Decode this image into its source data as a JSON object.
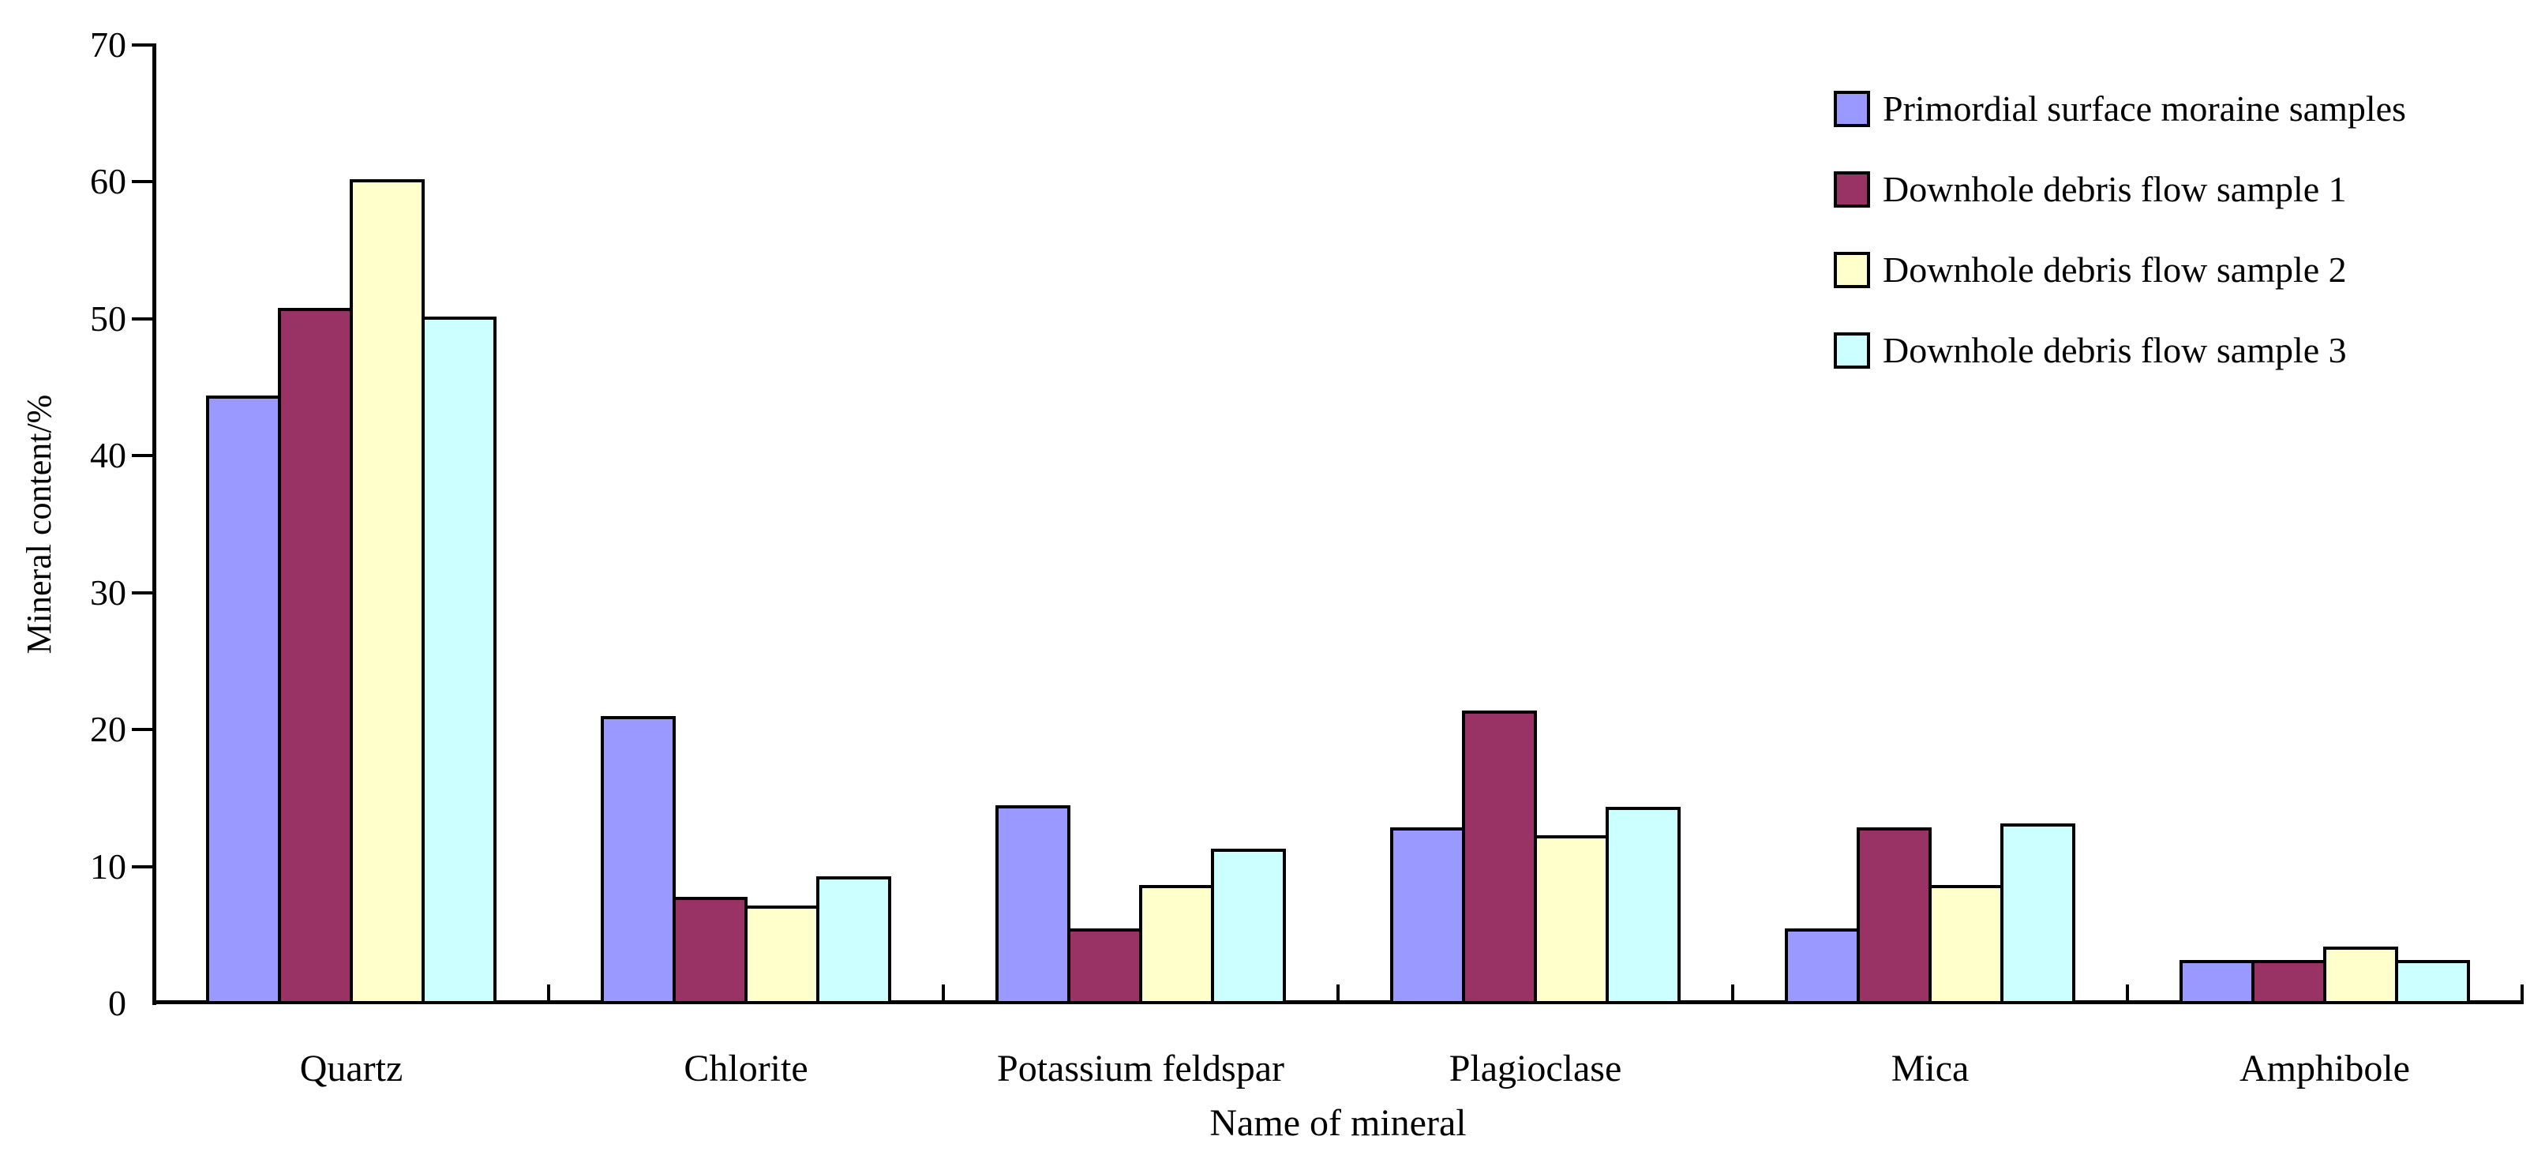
{
  "chart_data": {
    "type": "bar",
    "title": "",
    "xlabel": "Name of mineral",
    "ylabel": "Mineral content/%",
    "ylim": [
      0,
      70
    ],
    "yticks": [
      0,
      10,
      20,
      30,
      40,
      50,
      60,
      70
    ],
    "grid": false,
    "legend_position": "top-right",
    "background_color": "#FFFFFF",
    "bar_border_color": "#000000",
    "categories": [
      "Quartz",
      "Chlorite",
      "Potassium feldspar",
      "Plagioclase",
      "Mica",
      "Amphibole"
    ],
    "series": [
      {
        "name": "Primordial surface moraine samples",
        "color": "#9999FF",
        "values": [
          44.2,
          20.8,
          14.3,
          12.7,
          5.3,
          3.0
        ]
      },
      {
        "name": "Downhole debris flow sample 1",
        "color": "#993366",
        "values": [
          50.6,
          7.6,
          5.3,
          21.2,
          12.7,
          3.0
        ]
      },
      {
        "name": "Downhole debris flow sample 2",
        "color": "#FFFFCC",
        "values": [
          60.0,
          7.0,
          8.5,
          12.1,
          8.5,
          4.0
        ]
      },
      {
        "name": "Downhole debris flow sample 3",
        "color": "#CCFFFF",
        "values": [
          50.0,
          9.1,
          11.1,
          14.2,
          13.0,
          3.0
        ]
      }
    ]
  }
}
